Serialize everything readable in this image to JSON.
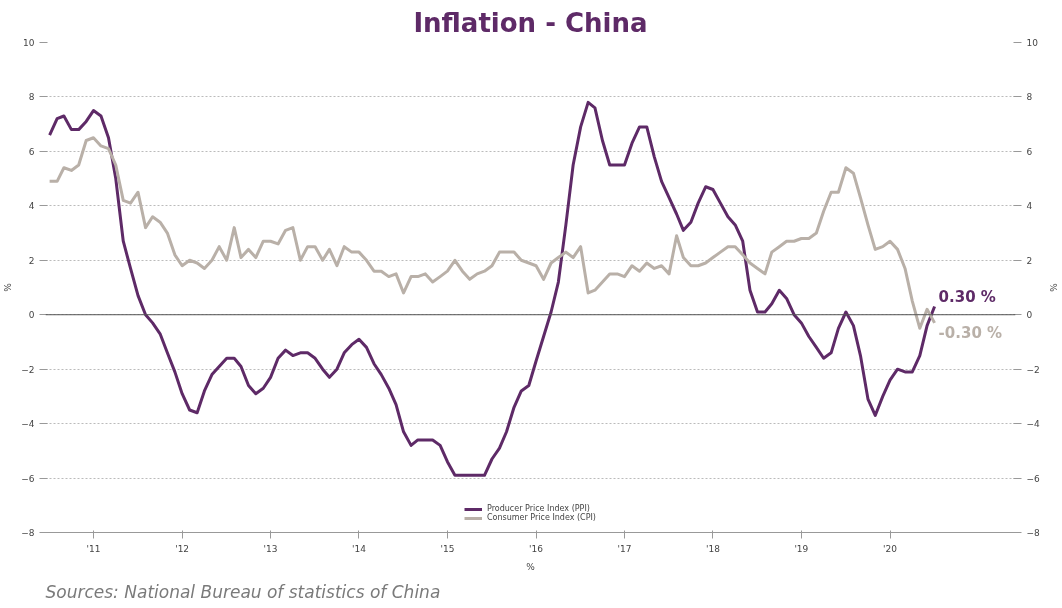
{
  "chart_data": {
    "type": "line",
    "title": "Inflation - China",
    "xlabel": "%",
    "ylabel": "%",
    "y2label": "%",
    "x": [
      "2011-01",
      "2011-02",
      "2011-03",
      "2011-04",
      "2011-05",
      "2011-06",
      "2011-07",
      "2011-08",
      "2011-09",
      "2011-10",
      "2011-11",
      "2011-12",
      "2012-01",
      "2012-02",
      "2012-03",
      "2012-04",
      "2012-05",
      "2012-06",
      "2012-07",
      "2012-08",
      "2012-09",
      "2012-10",
      "2012-11",
      "2012-12",
      "2013-01",
      "2013-02",
      "2013-03",
      "2013-04",
      "2013-05",
      "2013-06",
      "2013-07",
      "2013-08",
      "2013-09",
      "2013-10",
      "2013-11",
      "2013-12",
      "2014-01",
      "2014-02",
      "2014-03",
      "2014-04",
      "2014-05",
      "2014-06",
      "2014-07",
      "2014-08",
      "2014-09",
      "2014-10",
      "2014-11",
      "2014-12",
      "2015-01",
      "2015-02",
      "2015-03",
      "2015-04",
      "2015-05",
      "2015-06",
      "2015-07",
      "2015-08",
      "2015-09",
      "2015-10",
      "2015-11",
      "2015-12",
      "2016-01",
      "2016-02",
      "2016-03",
      "2016-04",
      "2016-05",
      "2016-06",
      "2016-07",
      "2016-08",
      "2016-09",
      "2016-10",
      "2016-11",
      "2016-12",
      "2017-01",
      "2017-02",
      "2017-03",
      "2017-04",
      "2017-05",
      "2017-06",
      "2017-07",
      "2017-08",
      "2017-09",
      "2017-10",
      "2017-11",
      "2017-12",
      "2018-01",
      "2018-02",
      "2018-03",
      "2018-04",
      "2018-05",
      "2018-06",
      "2018-07",
      "2018-08",
      "2018-09",
      "2018-10",
      "2018-11",
      "2018-12",
      "2019-01",
      "2019-02",
      "2019-03",
      "2019-04",
      "2019-05",
      "2019-06",
      "2019-07",
      "2019-08",
      "2019-09",
      "2019-10",
      "2019-11",
      "2019-12",
      "2020-01",
      "2020-02",
      "2020-03",
      "2020-04",
      "2020-05",
      "2020-06",
      "2020-07",
      "2020-08",
      "2020-09",
      "2020-10",
      "2020-11",
      "2020-12",
      "2021-01"
    ],
    "series": [
      {
        "name": "Producer Price Index (PPI)",
        "color": "#5e2a67",
        "values": [
          6.6,
          7.2,
          7.3,
          6.8,
          6.8,
          7.1,
          7.5,
          7.3,
          6.5,
          5.0,
          2.7,
          1.7,
          0.7,
          0.0,
          -0.3,
          -0.7,
          -1.4,
          -2.1,
          -2.9,
          -3.5,
          -3.6,
          -2.8,
          -2.2,
          -1.9,
          -1.6,
          -1.6,
          -1.9,
          -2.6,
          -2.9,
          -2.7,
          -2.3,
          -1.6,
          -1.3,
          -1.5,
          -1.4,
          -1.4,
          -1.6,
          -2.0,
          -2.3,
          -2.0,
          -1.4,
          -1.1,
          -0.9,
          -1.2,
          -1.8,
          -2.2,
          -2.7,
          -3.3,
          -4.3,
          -4.8,
          -4.6,
          -4.6,
          -4.6,
          -4.8,
          -5.4,
          -5.9,
          -5.9,
          -5.9,
          -5.9,
          -5.9,
          -5.3,
          -4.9,
          -4.3,
          -3.4,
          -2.8,
          -2.6,
          -1.7,
          -0.8,
          0.1,
          1.2,
          3.3,
          5.5,
          6.9,
          7.8,
          7.6,
          6.4,
          5.5,
          5.5,
          5.5,
          6.3,
          6.9,
          6.9,
          5.8,
          4.9,
          4.3,
          3.7,
          3.1,
          3.4,
          4.1,
          4.7,
          4.6,
          4.1,
          3.6,
          3.3,
          2.7,
          0.9,
          0.1,
          0.1,
          0.4,
          0.9,
          0.6,
          0.0,
          -0.3,
          -0.8,
          -1.2,
          -1.6,
          -1.4,
          -0.5,
          0.1,
          -0.4,
          -1.5,
          -3.1,
          -3.7,
          -3.0,
          -2.4,
          -2.0,
          -2.1,
          -2.1,
          -1.5,
          -0.4,
          0.3
        ]
      },
      {
        "name": "Consumer Price Index (CPI)",
        "color": "#b9b0a8",
        "values": [
          4.9,
          4.9,
          5.4,
          5.3,
          5.5,
          6.4,
          6.5,
          6.2,
          6.1,
          5.5,
          4.2,
          4.1,
          4.5,
          3.2,
          3.6,
          3.4,
          3.0,
          2.2,
          1.8,
          2.0,
          1.9,
          1.7,
          2.0,
          2.5,
          2.0,
          3.2,
          2.1,
          2.4,
          2.1,
          2.7,
          2.7,
          2.6,
          3.1,
          3.2,
          2.0,
          2.5,
          2.5,
          2.0,
          2.4,
          1.8,
          2.5,
          2.3,
          2.3,
          2.0,
          1.6,
          1.6,
          1.4,
          1.5,
          0.8,
          1.4,
          1.4,
          1.5,
          1.2,
          1.4,
          1.6,
          2.0,
          1.6,
          1.3,
          1.5,
          1.6,
          1.8,
          2.3,
          2.3,
          2.3,
          2.0,
          1.9,
          1.8,
          1.3,
          1.9,
          2.1,
          2.3,
          2.1,
          2.5,
          0.8,
          0.9,
          1.2,
          1.5,
          1.5,
          1.4,
          1.8,
          1.6,
          1.9,
          1.7,
          1.8,
          1.5,
          2.9,
          2.1,
          1.8,
          1.8,
          1.9,
          2.1,
          2.3,
          2.5,
          2.5,
          2.2,
          1.9,
          1.7,
          1.5,
          2.3,
          2.5,
          2.7,
          2.7,
          2.8,
          2.8,
          3.0,
          3.8,
          4.5,
          4.5,
          5.4,
          5.2,
          4.3,
          3.3,
          2.4,
          2.5,
          2.7,
          2.4,
          1.7,
          0.5,
          -0.5,
          0.2,
          -0.3
        ]
      }
    ],
    "xlim": [
      "2010-12-15",
      "2021-12-01"
    ],
    "xticks": [
      {
        "value": "2011-07",
        "label": "'11"
      },
      {
        "value": "2012-07",
        "label": "'12"
      },
      {
        "value": "2013-07",
        "label": "'13"
      },
      {
        "value": "2014-07",
        "label": "'14"
      },
      {
        "value": "2015-07",
        "label": "'15"
      },
      {
        "value": "2016-07",
        "label": "'16"
      },
      {
        "value": "2017-07",
        "label": "'17"
      },
      {
        "value": "2018-07",
        "label": "'18"
      },
      {
        "value": "2019-07",
        "label": "'19"
      },
      {
        "value": "2020-07",
        "label": "'20"
      }
    ],
    "ylim": [
      -8,
      10
    ],
    "yticks": [
      -8,
      -6,
      -4,
      -2,
      0,
      2,
      4,
      6,
      8,
      10
    ],
    "y2lim": [
      -8,
      10
    ],
    "y2ticks": [
      -8,
      -6,
      -4,
      -2,
      0,
      2,
      4,
      6,
      8,
      10
    ],
    "ref_lines": [
      {
        "axis": "y",
        "value": 0,
        "color": "#555555"
      }
    ],
    "grid": "y",
    "legend": "bottom",
    "line_style": "solid",
    "marker": "none",
    "annotations": [
      {
        "text": "0.30 %",
        "x": "2021-01",
        "y": 0.3
      },
      {
        "text": "-0.30 %",
        "x": "2021-01",
        "y": -0.3
      },
      "Sources: National Bureau of statistics of China"
    ]
  }
}
